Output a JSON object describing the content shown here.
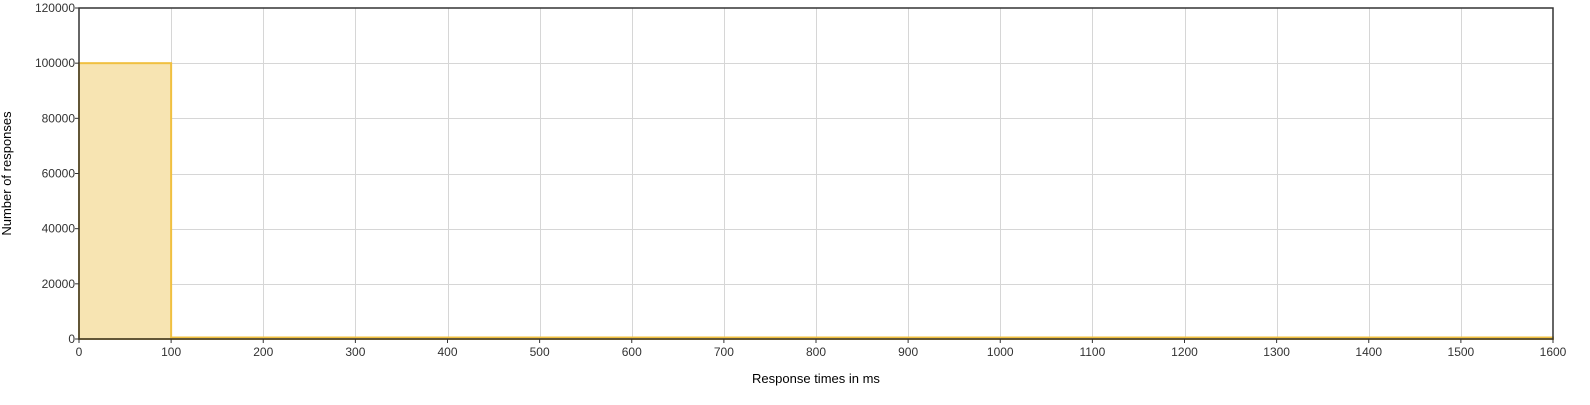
{
  "chart_data": {
    "type": "bar",
    "title": "",
    "xlabel": "Response times in ms",
    "ylabel": "Number of responses",
    "xlim": [
      0,
      1600
    ],
    "ylim": [
      0,
      120000
    ],
    "x_ticks": [
      0,
      100,
      200,
      300,
      400,
      500,
      600,
      700,
      800,
      900,
      1000,
      1100,
      1200,
      1300,
      1400,
      1500,
      1600
    ],
    "y_ticks": [
      0,
      20000,
      40000,
      60000,
      80000,
      100000,
      120000
    ],
    "grid": true,
    "legend": "none",
    "bin_width": 100,
    "bins": [
      {
        "start": 0,
        "end": 100,
        "value": 100000
      },
      {
        "start": 100,
        "end": 200,
        "value": 500
      },
      {
        "start": 200,
        "end": 300,
        "value": 200
      },
      {
        "start": 300,
        "end": 400,
        "value": 150
      },
      {
        "start": 400,
        "end": 500,
        "value": 120
      },
      {
        "start": 500,
        "end": 600,
        "value": 100
      },
      {
        "start": 600,
        "end": 700,
        "value": 100
      },
      {
        "start": 700,
        "end": 800,
        "value": 100
      },
      {
        "start": 800,
        "end": 900,
        "value": 100
      },
      {
        "start": 900,
        "end": 1000,
        "value": 100
      },
      {
        "start": 1000,
        "end": 1100,
        "value": 100
      },
      {
        "start": 1100,
        "end": 1200,
        "value": 100
      },
      {
        "start": 1200,
        "end": 1300,
        "value": 100
      },
      {
        "start": 1300,
        "end": 1400,
        "value": 100
      },
      {
        "start": 1400,
        "end": 1500,
        "value": 100
      },
      {
        "start": 1500,
        "end": 1600,
        "value": 100
      }
    ],
    "colors": {
      "bar_fill": "#f7e4b2",
      "bar_stroke": "#f0c040",
      "grid": "#d6d6d6",
      "frame": "#333333"
    }
  }
}
